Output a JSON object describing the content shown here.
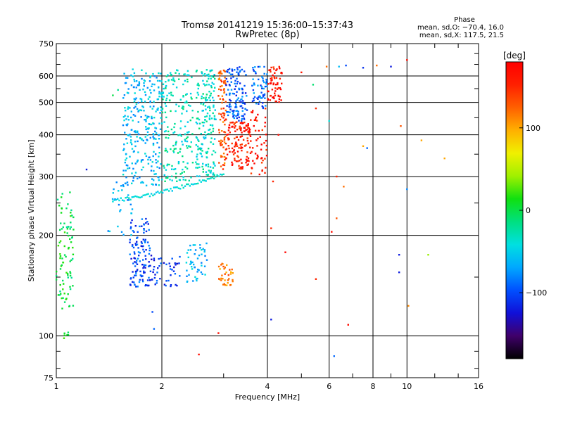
{
  "header": {
    "title_line1": "Tromsø 20141219 15:36:00–15:37:43",
    "title_line2": "RwPretec (8p)",
    "phase_heading": "Phase",
    "phase_stats_o": "mean, sd,O: −70.4, 16.0",
    "phase_stats_x": "mean, sd,X: 117.5, 21.5"
  },
  "colorbar": {
    "unit_label": "[deg]",
    "tick_labels": [
      "100",
      "0",
      "−100"
    ],
    "tick_values": [
      100,
      0,
      -100
    ],
    "range": [
      -180,
      180
    ],
    "colors": [
      "#000000",
      "#40006a",
      "#1010d8",
      "#0050ff",
      "#00a8ff",
      "#00e0e0",
      "#00e080",
      "#10e010",
      "#a0f000",
      "#f0f000",
      "#ffb000",
      "#ff6000",
      "#ff2000",
      "#ff0000"
    ]
  },
  "chart_data": {
    "type": "scatter",
    "xlabel": "Frequency [MHz]",
    "ylabel": "Stationary phase Virtual Height [km]",
    "x_scale": "log",
    "y_scale": "log",
    "xlim": [
      1,
      16
    ],
    "ylim": [
      75,
      750
    ],
    "x_ticks": [
      1,
      2,
      4,
      6,
      8,
      10,
      16
    ],
    "x_tick_labels": [
      "1",
      "2",
      "4",
      "6",
      "8",
      "10",
      "16"
    ],
    "y_ticks": [
      75,
      100,
      200,
      300,
      400,
      500,
      600,
      750
    ],
    "y_tick_labels": [
      "75",
      "100",
      "200",
      "300",
      "400",
      "500",
      "600",
      "750"
    ],
    "grid": true,
    "clusters": [
      {
        "f_min": 1.0,
        "f_max": 1.12,
        "h_min": 120,
        "h_max": 270,
        "phase": 0,
        "count": 90
      },
      {
        "f_min": 1.05,
        "f_max": 1.1,
        "h_min": 97,
        "h_max": 103,
        "phase": 10,
        "count": 6
      },
      {
        "f_min": 1.55,
        "f_max": 2.0,
        "h_min": 280,
        "h_max": 630,
        "phase": -60,
        "count": 280
      },
      {
        "f_min": 2.0,
        "f_max": 2.45,
        "h_min": 290,
        "h_max": 630,
        "phase": -30,
        "count": 180
      },
      {
        "f_min": 2.5,
        "f_max": 2.85,
        "h_min": 300,
        "h_max": 630,
        "phase": -35,
        "count": 180
      },
      {
        "f_min": 2.9,
        "f_max": 3.05,
        "h_min": 315,
        "h_max": 630,
        "phase": 130,
        "count": 90
      },
      {
        "f_min": 3.05,
        "f_max": 3.55,
        "h_min": 315,
        "h_max": 440,
        "phase": 160,
        "count": 120
      },
      {
        "f_min": 3.05,
        "f_max": 3.5,
        "h_min": 440,
        "h_max": 640,
        "phase": -95,
        "count": 120
      },
      {
        "f_min": 3.55,
        "f_max": 4.0,
        "h_min": 300,
        "h_max": 480,
        "phase": 160,
        "count": 60
      },
      {
        "f_min": 3.6,
        "f_max": 4.0,
        "h_min": 480,
        "h_max": 640,
        "phase": -90,
        "count": 60
      },
      {
        "f_min": 4.0,
        "f_max": 4.4,
        "h_min": 500,
        "h_max": 640,
        "phase": 165,
        "count": 60
      },
      {
        "f_min": 1.62,
        "f_max": 1.85,
        "h_min": 140,
        "h_max": 225,
        "phase": -100,
        "count": 120
      },
      {
        "f_min": 1.85,
        "f_max": 2.25,
        "h_min": 140,
        "h_max": 175,
        "phase": -110,
        "count": 50
      },
      {
        "f_min": 2.35,
        "f_max": 2.7,
        "h_min": 145,
        "h_max": 190,
        "phase": -60,
        "count": 50
      },
      {
        "f_min": 2.9,
        "f_max": 3.2,
        "h_min": 140,
        "h_max": 165,
        "phase": 115,
        "count": 35
      },
      {
        "f_min": 1.4,
        "f_max": 1.65,
        "h_min": 200,
        "h_max": 300,
        "phase": -70,
        "count": 25
      }
    ],
    "ridge": {
      "f_start": 1.45,
      "f_end": 3.0,
      "h_start": 255,
      "h_end": 305,
      "phase": -40
    },
    "scattered_points": [
      {
        "f": 1.22,
        "h": 315,
        "phase": -120
      },
      {
        "f": 1.45,
        "h": 525,
        "phase": 0
      },
      {
        "f": 1.5,
        "h": 545,
        "phase": -20
      },
      {
        "f": 1.88,
        "h": 118,
        "phase": -100
      },
      {
        "f": 1.9,
        "h": 105,
        "phase": -90
      },
      {
        "f": 2.55,
        "h": 88,
        "phase": 170
      },
      {
        "f": 2.9,
        "h": 102,
        "phase": 170
      },
      {
        "f": 4.3,
        "h": 400,
        "phase": 170
      },
      {
        "f": 4.15,
        "h": 290,
        "phase": 150
      },
      {
        "f": 4.1,
        "h": 210,
        "phase": 150
      },
      {
        "f": 4.5,
        "h": 178,
        "phase": 175
      },
      {
        "f": 4.1,
        "h": 112,
        "phase": -120
      },
      {
        "f": 5.0,
        "h": 615,
        "phase": 160
      },
      {
        "f": 5.4,
        "h": 565,
        "phase": -10
      },
      {
        "f": 5.5,
        "h": 480,
        "phase": 150
      },
      {
        "f": 5.5,
        "h": 148,
        "phase": 150
      },
      {
        "f": 6.0,
        "h": 440,
        "phase": -40
      },
      {
        "f": 6.1,
        "h": 205,
        "phase": 170
      },
      {
        "f": 6.3,
        "h": 300,
        "phase": 150
      },
      {
        "f": 6.2,
        "h": 87,
        "phase": -90
      },
      {
        "f": 6.6,
        "h": 280,
        "phase": 120
      },
      {
        "f": 6.3,
        "h": 225,
        "phase": 130
      },
      {
        "f": 6.8,
        "h": 108,
        "phase": 170
      },
      {
        "f": 6.4,
        "h": 640,
        "phase": -60
      },
      {
        "f": 7.5,
        "h": 635,
        "phase": -110
      },
      {
        "f": 7.7,
        "h": 365,
        "phase": -90
      },
      {
        "f": 7.5,
        "h": 370,
        "phase": 100
      },
      {
        "f": 8.2,
        "h": 645,
        "phase": 120
      },
      {
        "f": 9.0,
        "h": 640,
        "phase": -120
      },
      {
        "f": 9.6,
        "h": 425,
        "phase": 130
      },
      {
        "f": 9.5,
        "h": 175,
        "phase": -120
      },
      {
        "f": 9.5,
        "h": 155,
        "phase": -120
      },
      {
        "f": 10.0,
        "h": 275,
        "phase": -80
      },
      {
        "f": 10.0,
        "h": 670,
        "phase": 170
      },
      {
        "f": 10.1,
        "h": 123,
        "phase": 110
      },
      {
        "f": 11.0,
        "h": 385,
        "phase": 100
      },
      {
        "f": 11.5,
        "h": 175,
        "phase": 40
      },
      {
        "f": 12.8,
        "h": 340,
        "phase": 100
      },
      {
        "f": 5.9,
        "h": 640,
        "phase": 120
      },
      {
        "f": 6.7,
        "h": 645,
        "phase": -100
      }
    ]
  }
}
